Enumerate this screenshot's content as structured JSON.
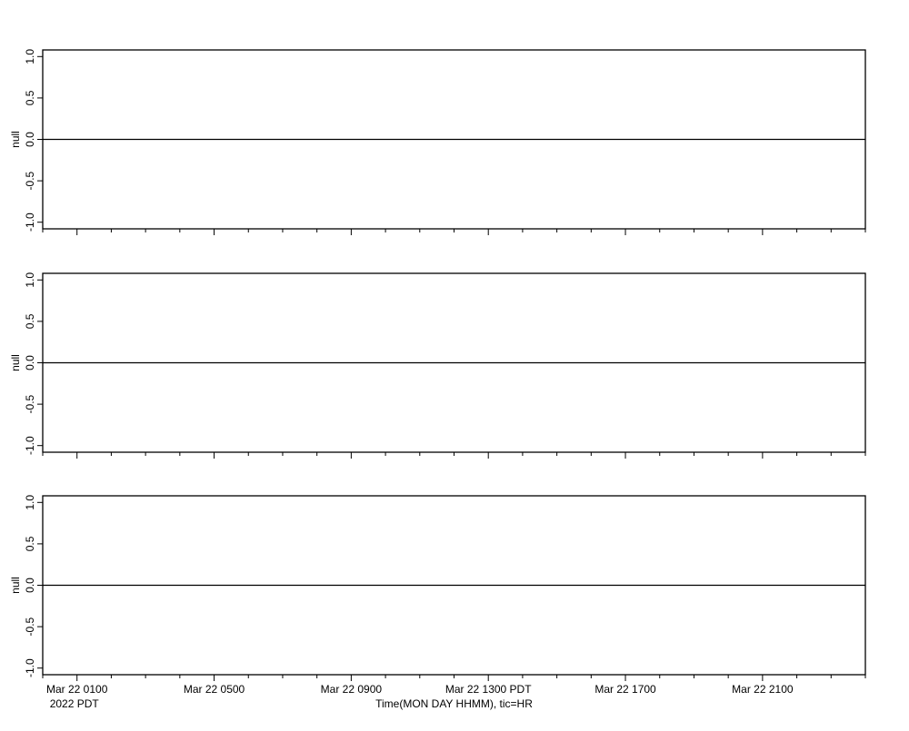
{
  "chart_data": [
    {
      "type": "line",
      "ylabel": "null",
      "ylim": [
        -1.08,
        1.08
      ],
      "yticks": [
        -1.0,
        -0.5,
        0.0,
        0.5,
        1.0
      ],
      "ytick_labels": [
        "-1.0",
        "-0.5",
        "0.0",
        "0.5",
        "1.0"
      ],
      "xlim": [
        "Mar 22 0000",
        "Mar 23 0000"
      ],
      "series": [
        {
          "x": [
            "Mar 22 0000",
            "Mar 23 0000"
          ],
          "y": [
            0,
            0
          ],
          "color": "#000000"
        }
      ]
    },
    {
      "type": "line",
      "ylabel": "null",
      "ylim": [
        -1.08,
        1.08
      ],
      "yticks": [
        -1.0,
        -0.5,
        0.0,
        0.5,
        1.0
      ],
      "ytick_labels": [
        "-1.0",
        "-0.5",
        "0.0",
        "0.5",
        "1.0"
      ],
      "xlim": [
        "Mar 22 0000",
        "Mar 23 0000"
      ],
      "series": [
        {
          "x": [
            "Mar 22 0000",
            "Mar 23 0000"
          ],
          "y": [
            0,
            0
          ],
          "color": "#000000"
        }
      ]
    },
    {
      "type": "line",
      "ylabel": "null",
      "ylim": [
        -1.08,
        1.08
      ],
      "yticks": [
        -1.0,
        -0.5,
        0.0,
        0.5,
        1.0
      ],
      "ytick_labels": [
        "-1.0",
        "-0.5",
        "0.0",
        "0.5",
        "1.0"
      ],
      "xlim": [
        "Mar 22 0000",
        "Mar 23 0000"
      ],
      "xlabel": "Time(MON DAY HHMM), tic=HR",
      "xtick_interval_hours": 1,
      "major_ticks_hours": [
        1,
        5,
        9,
        13,
        17,
        21
      ],
      "xtick_labels": [
        "Mar 22 0100",
        "Mar 22 0500",
        "Mar 22 0900",
        "Mar 22 1300 PDT",
        "Mar 22 1700",
        "Mar 22 2100"
      ],
      "xtick_sublabel": "2022 PDT",
      "series": [
        {
          "x": [
            "Mar 22 0000",
            "Mar 23 0000"
          ],
          "y": [
            0,
            0
          ],
          "color": "#000000"
        }
      ]
    }
  ]
}
